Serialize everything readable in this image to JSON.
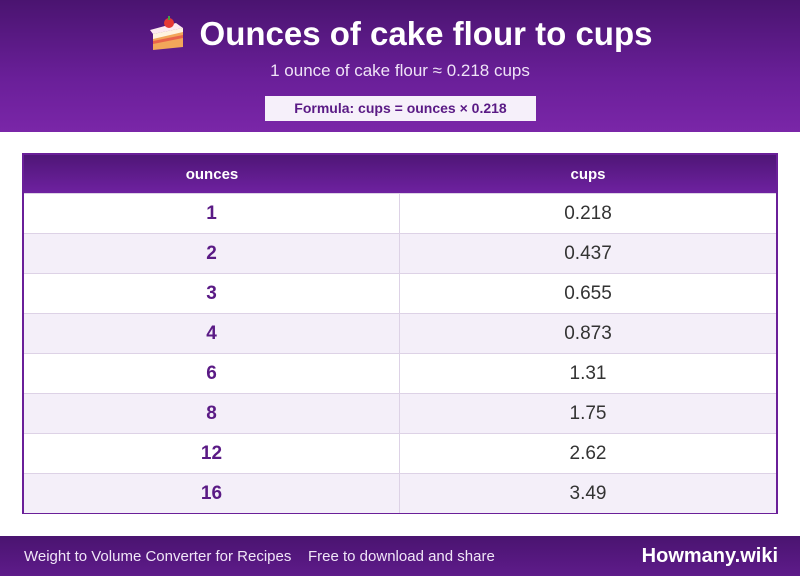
{
  "header": {
    "icon": "cake-slice-icon",
    "title": "Ounces of cake flour to cups",
    "subtitle": "1 ounce of cake flour ≈ 0.218 cups",
    "formula": "Formula: cups = ounces × 0.218"
  },
  "table": {
    "columns": [
      "ounces",
      "cups"
    ],
    "rows": [
      [
        "1",
        "0.218"
      ],
      [
        "2",
        "0.437"
      ],
      [
        "3",
        "0.655"
      ],
      [
        "4",
        "0.873"
      ],
      [
        "6",
        "1.31"
      ],
      [
        "8",
        "1.75"
      ],
      [
        "12",
        "2.62"
      ],
      [
        "16",
        "3.49"
      ]
    ]
  },
  "footer": {
    "left": "Weight to Volume Converter for Recipes",
    "middle": "Free to download and share",
    "brand": "Howmany.wiki"
  },
  "colors": {
    "brand_purple": "#6a1f99",
    "header_dark": "#4a1470"
  }
}
